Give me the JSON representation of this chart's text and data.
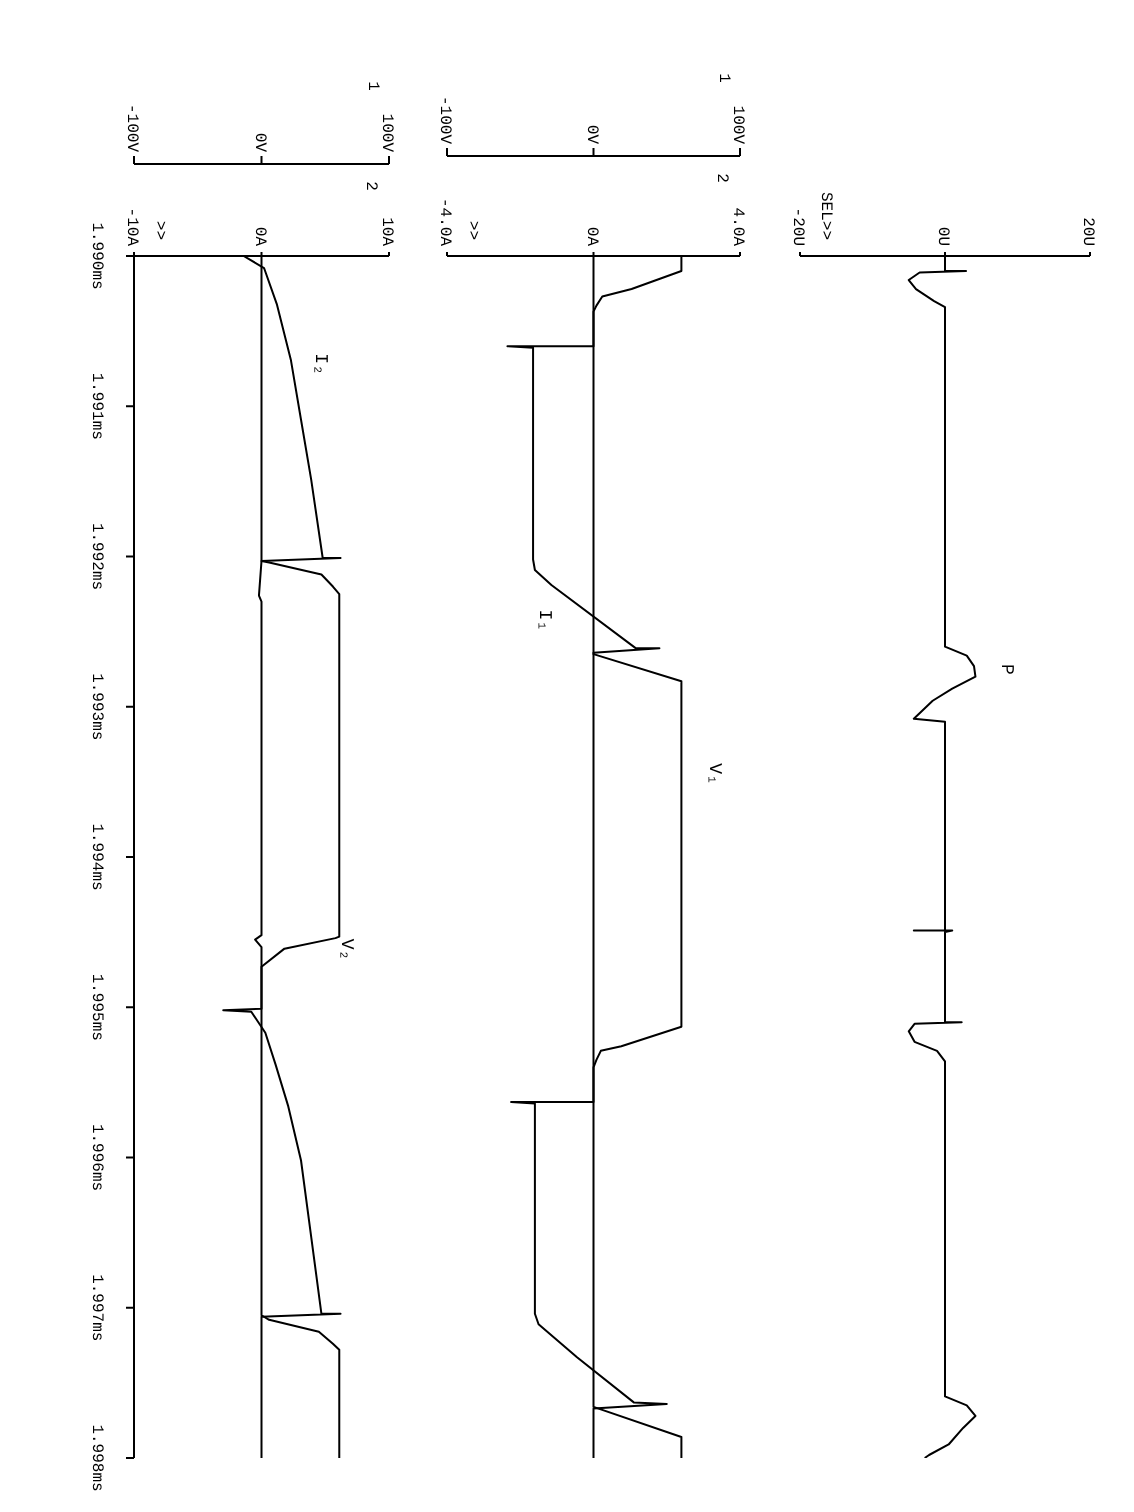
{
  "chart_data": [
    {
      "type": "line",
      "x2label": "1",
      "xlim": [
        -10,
        10
      ],
      "xticks": [
        {
          "value": -10,
          "label": "-10A"
        },
        {
          "value": 0,
          "label": "0A"
        },
        {
          "value": 10,
          "label": "10A"
        }
      ],
      "x2lim": [
        -100,
        100
      ],
      "x2ticks": [
        {
          "value": -100,
          "label": "-100V"
        },
        {
          "value": 0,
          "label": "0V"
        },
        {
          "value": 100,
          "label": "100V"
        }
      ],
      "ylim": [
        1.998,
        1.99
      ],
      "yticks": [
        {
          "value": 1.99,
          "label": "1.990ms"
        },
        {
          "value": 1.991,
          "label": "1.991ms"
        },
        {
          "value": 1.992,
          "label": "1.992ms"
        },
        {
          "value": 1.993,
          "label": "1.993ms"
        },
        {
          "value": 1.994,
          "label": "1.994ms"
        },
        {
          "value": 1.995,
          "label": "1.995ms"
        },
        {
          "value": 1.996,
          "label": "1.996ms"
        },
        {
          "value": 1.997,
          "label": "1.997ms"
        },
        {
          "value": 1.998,
          "label": "1.998ms"
        }
      ],
      "series": [
        {
          "name": "I₂",
          "color": "#000000",
          "x": [
            -1.4,
            0.2,
            1.2,
            2.3,
            3.1,
            3.9,
            4.8,
            6.2,
            0,
            -0.2,
            0,
            0,
            -0.5,
            0,
            0,
            -3.0,
            -0.8,
            0.3,
            1.1,
            2.1,
            3.1,
            3.9,
            4.7,
            6.2,
            0,
            0
          ],
          "values": [
            1.99,
            1.99008,
            1.99032,
            1.99069,
            1.99109,
            1.99149,
            1.99201,
            1.99201,
            1.99203,
            1.99226,
            1.9923,
            1.99452,
            1.99455,
            1.9946,
            1.99501,
            1.99502,
            1.99503,
            1.99517,
            1.99538,
            1.99566,
            1.99602,
            1.99653,
            1.99704,
            1.99704,
            1.99706,
            1.998
          ]
        },
        {
          "name": "V₂",
          "color": "#000000",
          "axis": "x2",
          "x": [
            0,
            0,
            6,
            47,
            56,
            61,
            61,
            58,
            18,
            0,
            0,
            6,
            45,
            56,
            61,
            61
          ],
          "values": [
            1.99,
            1.99203,
            1.99204,
            1.99212,
            1.9922,
            1.99225,
            1.99453,
            1.99454,
            1.99461,
            1.99473,
            1.99705,
            1.99708,
            1.99716,
            1.99724,
            1.99728,
            1.998
          ]
        }
      ],
      "annotations": [
        ">>",
        "2"
      ]
    },
    {
      "type": "line",
      "x2label": "1",
      "xlim": [
        -4,
        4
      ],
      "xticks": [
        {
          "value": -4,
          "label": "-4.0A"
        },
        {
          "value": 0,
          "label": "0A"
        },
        {
          "value": 4,
          "label": "4.0A"
        }
      ],
      "x2lim": [
        -100,
        100
      ],
      "x2ticks": [
        {
          "value": -100,
          "label": "-100V"
        },
        {
          "value": 0,
          "label": "0V"
        },
        {
          "value": 100,
          "label": "100V"
        }
      ],
      "ylim": [
        1.998,
        1.99
      ],
      "series": [
        {
          "name": "V₁",
          "color": "#000000",
          "axis": "x2",
          "x": [
            60,
            60,
            26,
            6,
            2,
            0,
            0,
            60,
            60,
            19,
            5,
            2,
            0,
            0,
            60,
            60
          ],
          "values": [
            1.99,
            1.9901,
            1.99022,
            1.99027,
            1.99033,
            1.99037,
            1.99265,
            1.99283,
            1.99513,
            1.99526,
            1.99529,
            1.99535,
            1.9954,
            1.99766,
            1.99786,
            1.998
          ]
        },
        {
          "name": "I₁",
          "color": "#000000",
          "x": [
            0,
            0,
            -2.35,
            -1.65,
            -1.65,
            -1.6,
            -1.15,
            1.15,
            1.8,
            0,
            0,
            -2.25,
            -1.6,
            -1.6,
            -1.5,
            -0.45,
            1.1,
            2.0,
            0,
            0
          ],
          "values": [
            1.99,
            1.9906,
            1.9906,
            1.99061,
            1.99202,
            1.99209,
            1.99219,
            1.99261,
            1.99261,
            1.99264,
            1.99563,
            1.99563,
            1.99564,
            1.99704,
            1.99711,
            1.99733,
            1.99763,
            1.99764,
            1.99767,
            1.998
          ]
        }
      ],
      "annotations": [
        ">>",
        "2"
      ],
      "tick_labels": "x"
    },
    {
      "type": "line",
      "xlim": [
        -20,
        20
      ],
      "xticks": [
        {
          "value": -20,
          "label": "-20U"
        },
        {
          "value": 0,
          "label": "0U"
        },
        {
          "value": 20,
          "label": "20U"
        }
      ],
      "ylim": [
        1.998,
        1.99
      ],
      "series": [
        {
          "name": "P",
          "color": "#000000",
          "x": [
            0,
            0,
            2.9,
            -3.5,
            -5.0,
            -4.0,
            -1.5,
            0,
            0,
            3.0,
            4.0,
            4.2,
            1.0,
            -1.7,
            -4.3,
            0,
            0,
            -4.3,
            1.0,
            0,
            0,
            2.3,
            -4.2,
            -5.0,
            -4.2,
            -1.1,
            0,
            0,
            3.0,
            4.2,
            2.5,
            0.5,
            -2.2,
            -2.8
          ],
          "values": [
            1.99,
            1.9901,
            1.9901,
            1.99011,
            1.99016,
            1.99022,
            1.9903,
            1.99034,
            1.9926,
            1.99266,
            1.99273,
            1.9928,
            1.99288,
            1.99296,
            1.99308,
            1.9931,
            1.99449,
            1.99449,
            1.99449,
            1.9945,
            1.9951,
            1.9951,
            1.99511,
            1.99516,
            1.99523,
            1.99529,
            1.99536,
            1.99759,
            1.99765,
            1.99772,
            1.9978,
            1.99791,
            1.99798,
            1.998
          ]
        }
      ],
      "annotations": [
        "SEL>>"
      ],
      "tick_labels": "x"
    }
  ]
}
